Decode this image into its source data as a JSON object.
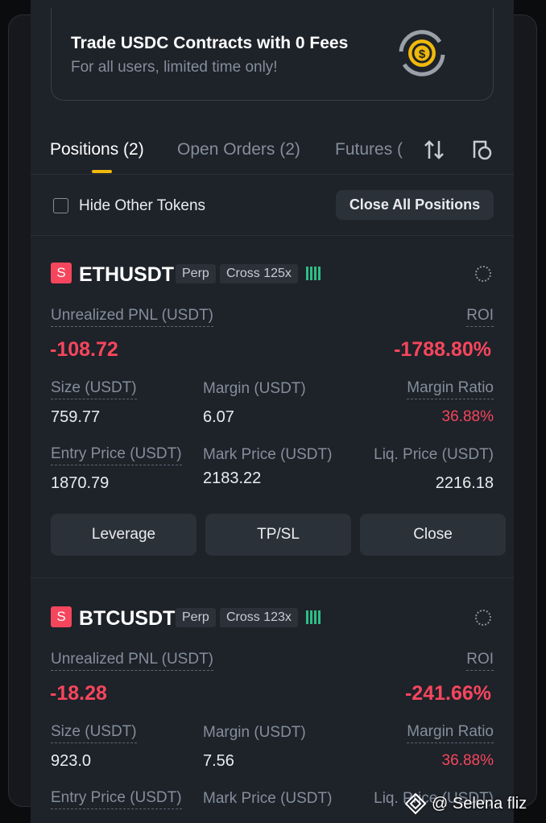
{
  "banner": {
    "title": "Trade USDC Contracts with 0 Fees",
    "subtitle": "For all users, limited time only!"
  },
  "tabs": [
    "Positions (2)",
    "Open Orders (2)",
    "Futures ("
  ],
  "filter": {
    "checkbox_label": "Hide Other Tokens",
    "button": "Close All Positions"
  },
  "positions": [
    {
      "badge": "S",
      "symbol": "ETHUSDT",
      "tags": [
        "Perp",
        "Cross 125x"
      ],
      "pnl_label": "Unrealized PNL (USDT)",
      "pnl": "-108.72",
      "roi_label": "ROI",
      "roi": "-1788.80%",
      "rows": [
        [
          {
            "label": "Size (USDT)",
            "value": "759.77"
          },
          {
            "label": "Margin (USDT)",
            "value": "6.07"
          },
          {
            "label": "Margin Ratio",
            "value": "36.88%"
          }
        ],
        [
          {
            "label": "Entry Price (USDT)",
            "value": "1870.79"
          },
          {
            "label": "Mark Price (USDT)",
            "value": "2183.22"
          },
          {
            "label": "Liq. Price (USDT)",
            "value": "2216.18"
          }
        ]
      ],
      "buttons": [
        "Leverage",
        "TP/SL",
        "Close"
      ]
    },
    {
      "badge": "S",
      "symbol": "BTCUSDT",
      "tags": [
        "Perp",
        "Cross 123x"
      ],
      "pnl_label": "Unrealized PNL (USDT)",
      "pnl": "-18.28",
      "roi_label": "ROI",
      "roi": "-241.66%",
      "rows": [
        [
          {
            "label": "Size (USDT)",
            "value": "923.0"
          },
          {
            "label": "Margin (USDT)",
            "value": "7.56"
          },
          {
            "label": "Margin Ratio",
            "value": "36.88%"
          }
        ],
        [
          {
            "label": "Entry Price (USDT)"
          },
          {
            "label": "Mark Price (USDT)"
          },
          {
            "label": "Liq. Price (USDT)"
          }
        ]
      ]
    }
  ],
  "watermark": "@ Selena fliz"
}
